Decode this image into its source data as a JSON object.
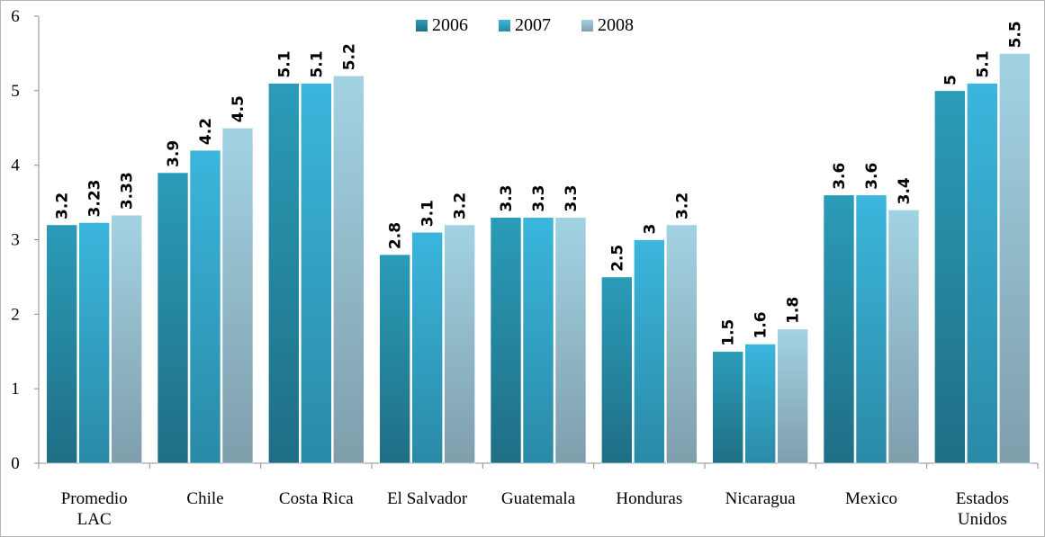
{
  "chart_data": {
    "type": "bar",
    "categories": [
      [
        "Promedio",
        "LAC"
      ],
      [
        "Chile"
      ],
      [
        "Costa Rica"
      ],
      [
        "El Salvador"
      ],
      [
        "Guatemala"
      ],
      [
        "Honduras"
      ],
      [
        "Nicaragua"
      ],
      [
        "Mexico"
      ],
      [
        "Estados",
        "Unidos"
      ]
    ],
    "series": [
      {
        "name": "2006",
        "color_top": "#2b9cb8",
        "color_bottom": "#1f6e85",
        "values": [
          3.2,
          3.9,
          5.1,
          2.8,
          3.3,
          2.5,
          1.5,
          3.6,
          5
        ],
        "labels": [
          "3.2",
          "3.9",
          "5.1",
          "2.8",
          "3.3",
          "2.5",
          "1.5",
          "3.6",
          "5"
        ]
      },
      {
        "name": "2007",
        "color_top": "#3bb6dd",
        "color_bottom": "#2a8aa6",
        "values": [
          3.23,
          4.2,
          5.1,
          3.1,
          3.3,
          3,
          1.6,
          3.6,
          5.1
        ],
        "labels": [
          "3.23",
          "4.2",
          "5.1",
          "3.1",
          "3.3",
          "3",
          "1.6",
          "3.6",
          "5.1"
        ]
      },
      {
        "name": "2008",
        "color_top": "#a2d3e3",
        "color_bottom": "#7f9eac",
        "values": [
          3.33,
          4.5,
          5.2,
          3.2,
          3.3,
          3.2,
          1.8,
          3.4,
          5.5
        ],
        "labels": [
          "3.33",
          "4.5",
          "5.2",
          "3.2",
          "3.3",
          "3.2",
          "1.8",
          "3.4",
          "5.5"
        ]
      }
    ],
    "ylim": [
      0,
      6
    ],
    "yticks": [
      "0",
      "1",
      "2",
      "3",
      "4",
      "5",
      "6"
    ],
    "grid": false,
    "legend_position": "top-center"
  }
}
